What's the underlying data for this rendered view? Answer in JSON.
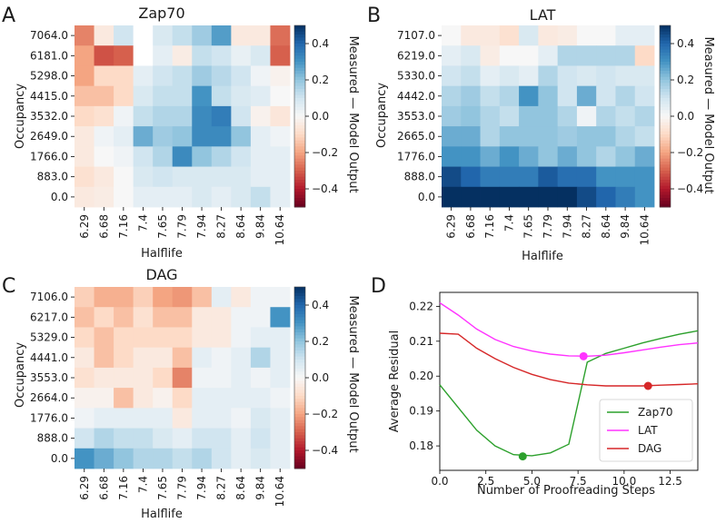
{
  "figure_labels": [
    "A",
    "B",
    "C",
    "D"
  ],
  "chart_data": [
    {
      "type": "heatmap",
      "panel": "A",
      "title": "Zap70",
      "xlabel": "Halflife",
      "ylabel": "Occupancy",
      "x_categories": [
        "6.29",
        "6.68",
        "7.16",
        "7.4",
        "7.65",
        "7.79",
        "7.94",
        "8.27",
        "8.64",
        "9.84",
        "10.64"
      ],
      "y_categories": [
        "7064.0",
        "6181.0",
        "5298.0",
        "4415.0",
        "3532.0",
        "2649.0",
        "1766.0",
        "883.0",
        "0.0"
      ],
      "colorbar": {
        "label": "Measured — Model Output",
        "vmin": -0.5,
        "vmax": 0.5,
        "ticks": [
          0.4,
          0.2,
          0.0,
          -0.2,
          -0.4
        ],
        "tick_labels": [
          "0.4",
          "0.2",
          "0.0",
          "−0.2",
          "−0.4"
        ]
      },
      "values": [
        [
          -0.25,
          -0.05,
          0.1,
          null,
          0.08,
          0.12,
          0.18,
          0.28,
          -0.05,
          -0.05,
          -0.28
        ],
        [
          -0.2,
          -0.32,
          -0.3,
          null,
          0.05,
          -0.04,
          0.12,
          0.1,
          0.04,
          0.08,
          -0.3
        ],
        [
          -0.2,
          -0.1,
          -0.1,
          0.05,
          0.1,
          0.12,
          0.18,
          0.14,
          0.1,
          0.02,
          -0.02
        ],
        [
          -0.15,
          -0.15,
          -0.1,
          0.08,
          0.12,
          0.12,
          0.3,
          0.12,
          0.08,
          0.06,
          0.0
        ],
        [
          -0.1,
          -0.08,
          0.02,
          0.12,
          0.15,
          0.15,
          0.32,
          0.35,
          0.1,
          -0.02,
          -0.06
        ],
        [
          -0.05,
          0.02,
          0.05,
          0.25,
          0.18,
          0.2,
          0.32,
          0.32,
          0.2,
          0.05,
          0.02
        ],
        [
          -0.05,
          0.0,
          0.02,
          0.1,
          0.15,
          0.32,
          0.2,
          0.15,
          0.1,
          0.05,
          0.05
        ],
        [
          -0.08,
          -0.05,
          0.0,
          0.08,
          0.1,
          0.08,
          0.08,
          0.08,
          0.08,
          0.05,
          0.05
        ],
        [
          -0.05,
          -0.04,
          0.0,
          0.05,
          0.05,
          0.05,
          0.08,
          0.05,
          0.08,
          0.12,
          0.05
        ]
      ]
    },
    {
      "type": "heatmap",
      "panel": "B",
      "title": "LAT",
      "xlabel": "Halflife",
      "ylabel": "Occupancy",
      "x_categories": [
        "6.29",
        "6.68",
        "7.16",
        "7.4",
        "7.65",
        "7.79",
        "7.94",
        "8.27",
        "8.64",
        "9.84",
        "10.64"
      ],
      "y_categories": [
        "7107.0",
        "6219.0",
        "5330.0",
        "4442.0",
        "3553.0",
        "2665.0",
        "1776.0",
        "888.0",
        "0.0"
      ],
      "colorbar": {
        "label": "Measured — Model Output",
        "vmin": -0.5,
        "vmax": 0.5,
        "ticks": [
          0.4,
          0.2,
          0.0,
          -0.2,
          -0.4
        ],
        "tick_labels": [
          "0.4",
          "0.2",
          "0.0",
          "−0.2",
          "−0.4"
        ]
      },
      "values": [
        [
          0.0,
          -0.05,
          -0.05,
          -0.08,
          0.08,
          -0.05,
          -0.04,
          0.0,
          0.0,
          0.05,
          0.05
        ],
        [
          0.05,
          0.08,
          -0.04,
          0.0,
          0.0,
          0.05,
          0.15,
          0.15,
          0.15,
          0.15,
          -0.1
        ],
        [
          0.1,
          0.12,
          0.05,
          0.08,
          0.05,
          0.15,
          0.1,
          0.08,
          0.1,
          0.08,
          0.08
        ],
        [
          0.15,
          0.18,
          0.12,
          0.15,
          0.3,
          0.2,
          0.1,
          0.25,
          0.1,
          0.15,
          0.1
        ],
        [
          0.18,
          0.2,
          0.15,
          0.12,
          0.2,
          0.2,
          0.15,
          0.02,
          0.15,
          0.12,
          0.15
        ],
        [
          0.25,
          0.25,
          0.15,
          0.2,
          0.2,
          0.2,
          0.18,
          0.2,
          0.2,
          0.15,
          0.12
        ],
        [
          0.3,
          0.3,
          0.25,
          0.3,
          0.25,
          0.2,
          0.25,
          0.2,
          0.15,
          0.2,
          0.25
        ],
        [
          0.45,
          0.4,
          0.35,
          0.35,
          0.35,
          0.42,
          0.38,
          0.38,
          0.3,
          0.3,
          0.3
        ],
        [
          0.55,
          0.55,
          0.55,
          0.55,
          0.55,
          0.5,
          0.5,
          0.45,
          0.4,
          0.35,
          0.3
        ]
      ]
    },
    {
      "type": "heatmap",
      "panel": "C",
      "title": "DAG",
      "xlabel": "Halflife",
      "ylabel": "Occupancy",
      "x_categories": [
        "6.29",
        "6.68",
        "7.16",
        "7.4",
        "7.65",
        "7.79",
        "7.94",
        "8.27",
        "8.64",
        "9.84",
        "10.64"
      ],
      "y_categories": [
        "7106.0",
        "6217.0",
        "5329.0",
        "4441.0",
        "3553.0",
        "2664.0",
        "1776.0",
        "888.0",
        "0.0"
      ],
      "colorbar": {
        "label": "Measured — Model Output",
        "vmin": -0.5,
        "vmax": 0.5,
        "ticks": [
          0.4,
          0.2,
          0.0,
          -0.2,
          -0.4
        ],
        "tick_labels": [
          "0.4",
          "0.2",
          "0.0",
          "−0.2",
          "−0.4"
        ]
      },
      "values": [
        [
          -0.12,
          -0.18,
          -0.18,
          -0.12,
          -0.2,
          -0.22,
          -0.15,
          0.05,
          -0.05,
          0.02,
          0.02
        ],
        [
          -0.15,
          -0.1,
          -0.15,
          -0.08,
          -0.15,
          -0.15,
          -0.05,
          -0.05,
          0.02,
          0.02,
          0.3
        ],
        [
          -0.1,
          -0.15,
          -0.1,
          -0.1,
          -0.1,
          -0.1,
          -0.05,
          -0.05,
          0.02,
          0.05,
          0.05
        ],
        [
          -0.05,
          -0.15,
          -0.1,
          -0.05,
          -0.05,
          -0.15,
          0.05,
          0.02,
          0.05,
          0.15,
          0.05
        ],
        [
          -0.08,
          -0.05,
          -0.05,
          -0.05,
          -0.1,
          -0.25,
          0.02,
          0.02,
          0.05,
          0.02,
          0.05
        ],
        [
          -0.02,
          -0.02,
          -0.15,
          -0.05,
          -0.02,
          -0.1,
          0.05,
          0.05,
          0.05,
          0.05,
          0.02
        ],
        [
          0.02,
          0.05,
          0.05,
          0.05,
          0.05,
          -0.05,
          0.05,
          0.05,
          0.02,
          0.08,
          0.05
        ],
        [
          0.1,
          0.15,
          0.12,
          0.12,
          0.08,
          0.05,
          0.1,
          0.1,
          0.05,
          0.1,
          0.05
        ],
        [
          0.3,
          0.25,
          0.2,
          0.15,
          0.15,
          0.12,
          0.15,
          0.1,
          0.05,
          0.08,
          0.05
        ]
      ]
    },
    {
      "type": "line",
      "panel": "D",
      "title": "",
      "xlabel": "Number of Proofreading Steps",
      "ylabel": "Average Residual",
      "xlim": [
        0,
        14
      ],
      "ylim": [
        0.173,
        0.224
      ],
      "x_ticks": [
        0.0,
        2.5,
        5.0,
        7.5,
        10.0,
        12.5
      ],
      "x_tick_labels": [
        "0.0",
        "2.5",
        "5.0",
        "7.5",
        "10.0",
        "12.5"
      ],
      "y_ticks": [
        0.18,
        0.19,
        0.2,
        0.21,
        0.22
      ],
      "y_tick_labels": [
        "0.18",
        "0.19",
        "0.20",
        "0.21",
        "0.22"
      ],
      "legend_position": "lower-right",
      "series": [
        {
          "name": "Zap70",
          "color": "#2ca02c",
          "x": [
            0,
            1,
            2,
            3,
            4,
            5,
            6,
            7,
            8,
            9,
            10,
            11,
            12,
            13,
            14
          ],
          "y": [
            0.1975,
            0.191,
            0.1845,
            0.18,
            0.1775,
            0.1772,
            0.178,
            0.1805,
            0.204,
            0.2065,
            0.208,
            0.2095,
            0.2108,
            0.212,
            0.213
          ],
          "min_marker": {
            "x": 4.5,
            "y": 0.177
          }
        },
        {
          "name": "LAT",
          "color": "#ff33ff",
          "x": [
            0,
            1,
            2,
            3,
            4,
            5,
            6,
            7,
            8,
            9,
            10,
            11,
            12,
            13,
            14
          ],
          "y": [
            0.221,
            0.2175,
            0.2135,
            0.2105,
            0.2085,
            0.2072,
            0.2063,
            0.2058,
            0.2057,
            0.206,
            0.2067,
            0.2075,
            0.2083,
            0.209,
            0.2095
          ],
          "min_marker": {
            "x": 7.8,
            "y": 0.2057
          }
        },
        {
          "name": "DAG",
          "color": "#d62728",
          "x": [
            0,
            1,
            2,
            3,
            4,
            5,
            6,
            7,
            8,
            9,
            10,
            11,
            12,
            13,
            14
          ],
          "y": [
            0.2123,
            0.212,
            0.208,
            0.205,
            0.2025,
            0.2005,
            0.199,
            0.198,
            0.1975,
            0.1972,
            0.1972,
            0.1972,
            0.1974,
            0.1976,
            0.1978
          ],
          "min_marker": {
            "x": 11.3,
            "y": 0.1972
          }
        }
      ]
    }
  ]
}
